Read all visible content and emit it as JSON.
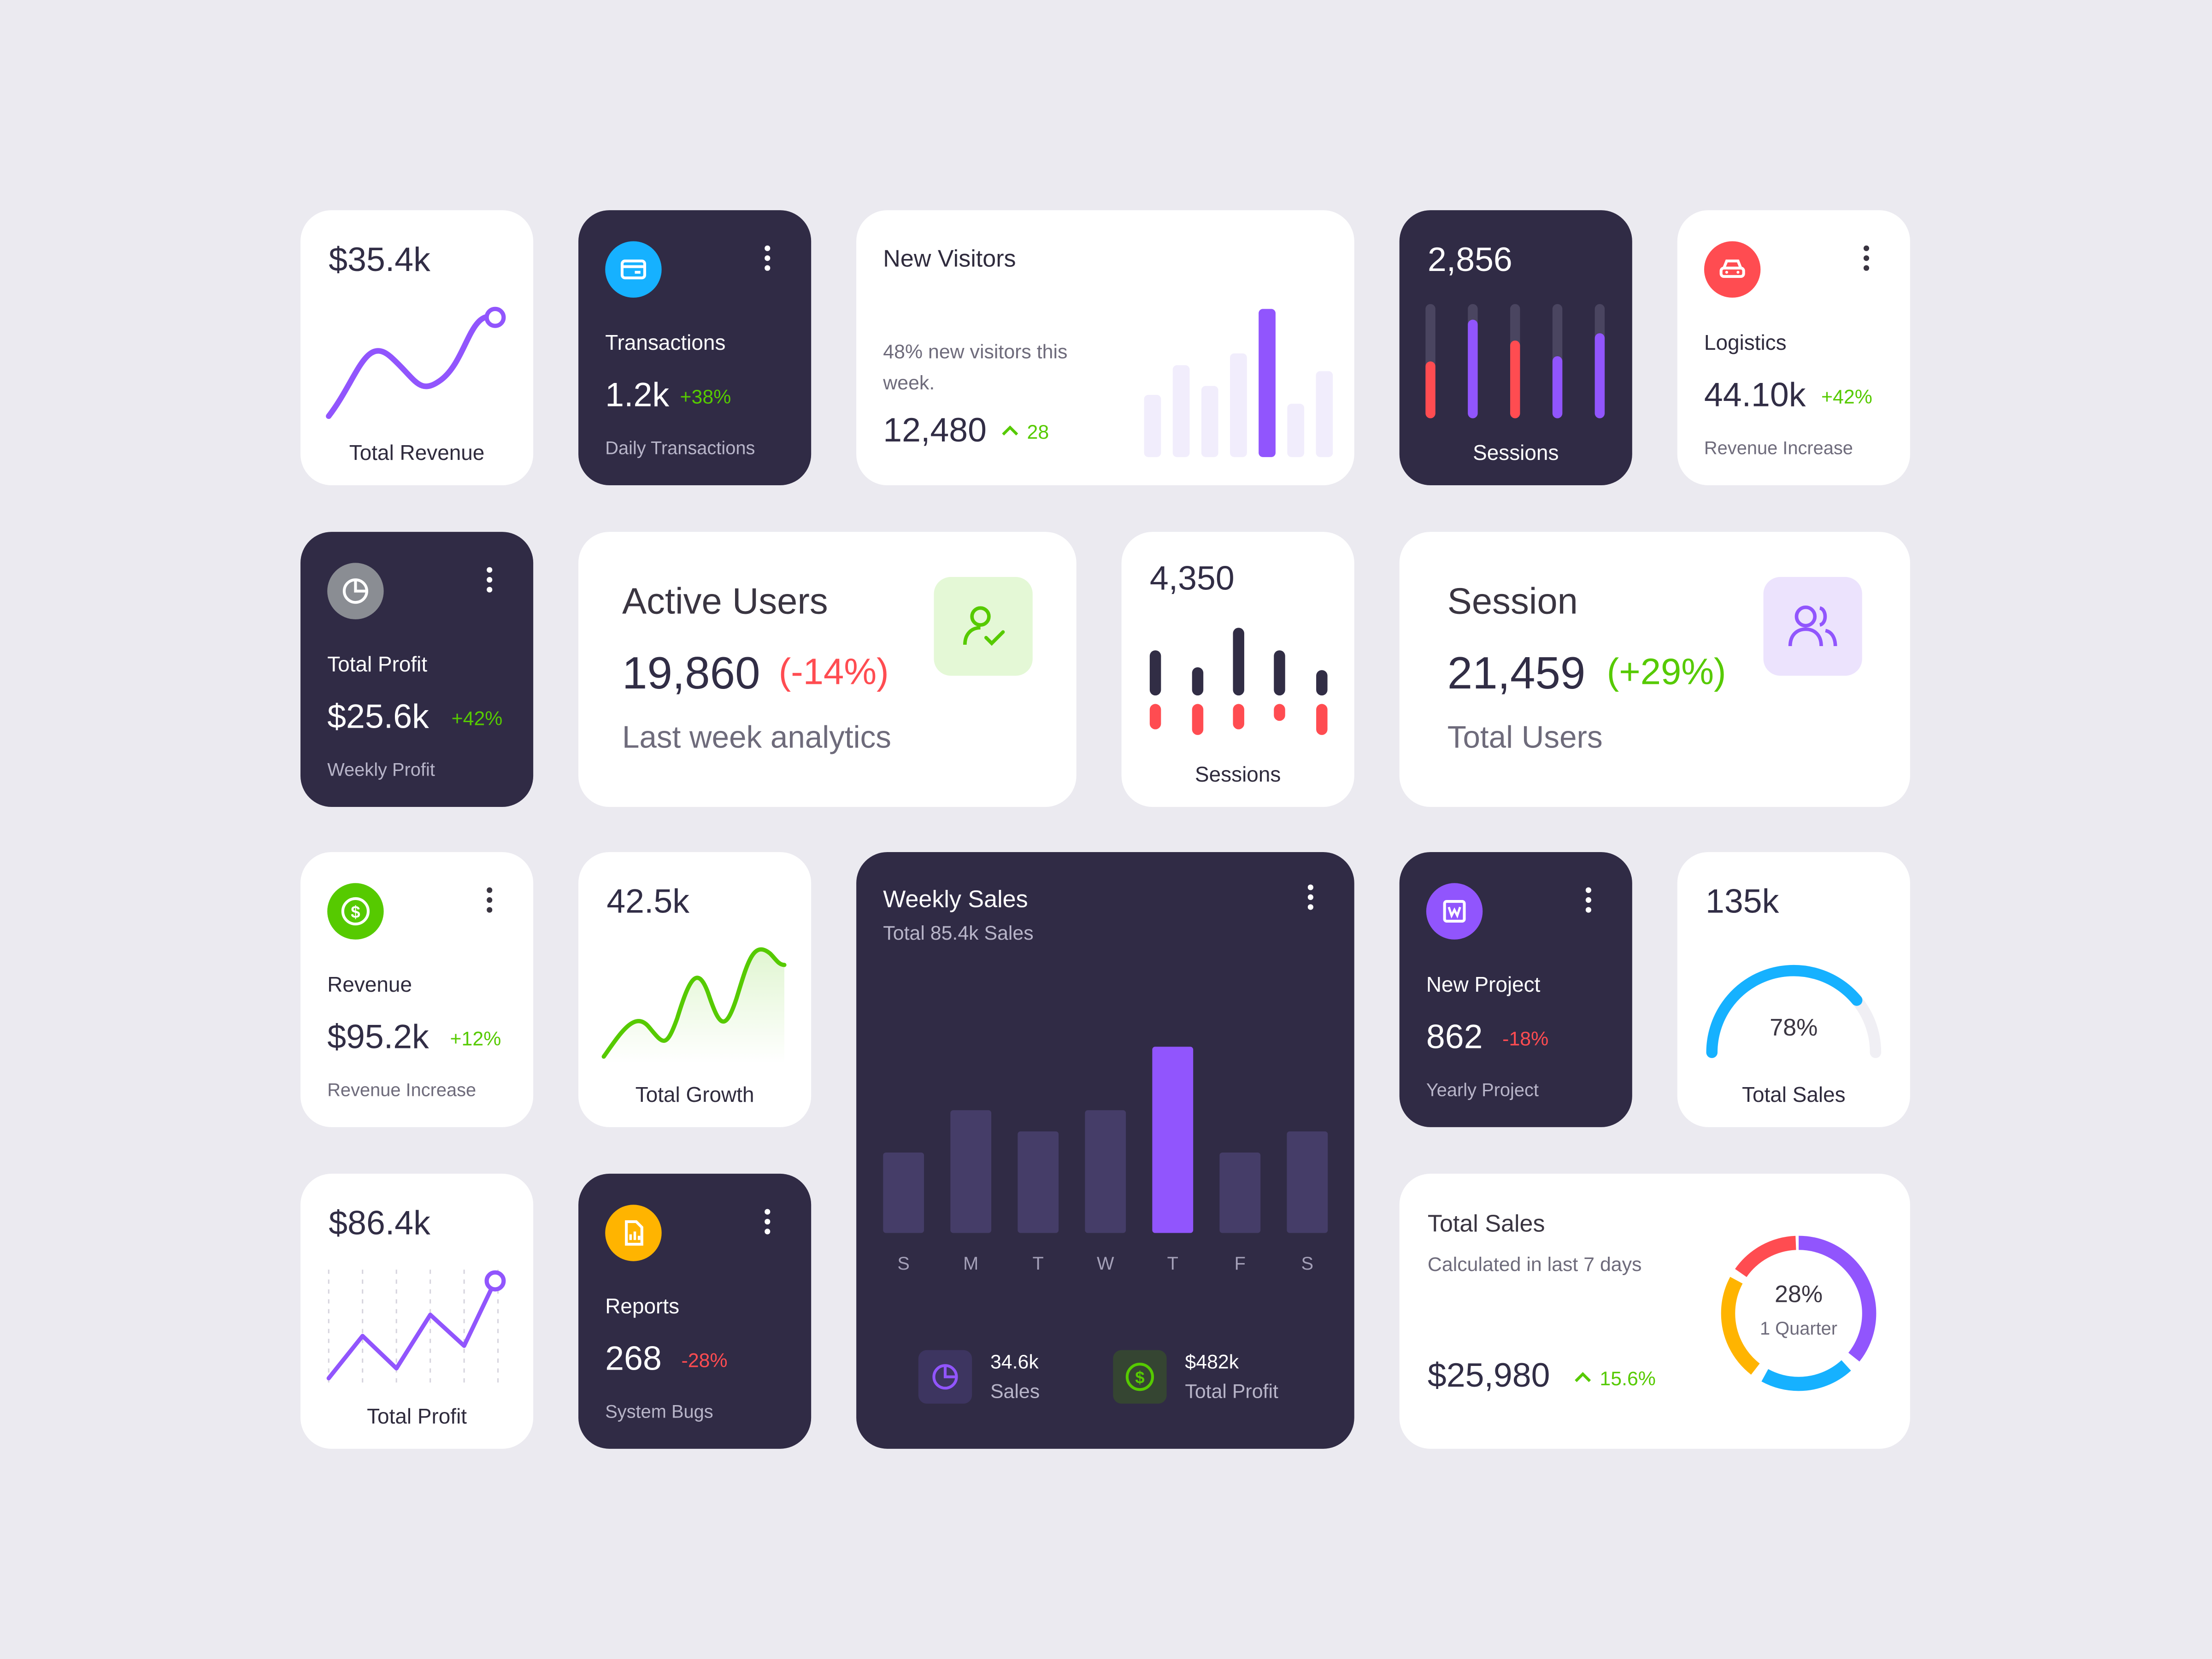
{
  "total_revenue": {
    "value": "$35.4k",
    "label": "Total Revenue"
  },
  "transactions": {
    "title": "Transactions",
    "value": "1.2k",
    "change": "+38%",
    "subtitle": "Daily Transactions",
    "icon": "credit-card-icon",
    "accent": "#16b1ff"
  },
  "new_visitors": {
    "title": "New Visitors",
    "description": "48% new visitors this week.",
    "value": "12,480",
    "change": "28",
    "bars": [
      0.42,
      0.62,
      0.48,
      0.7,
      1.0,
      0.36,
      0.58
    ],
    "highlight_index": 4
  },
  "sessions_dark": {
    "value": "2,856",
    "label": "Sessions",
    "bar_levels": [
      0.45,
      0.85,
      0.65,
      0.5,
      0.72
    ]
  },
  "logistics": {
    "title": "Logistics",
    "value": "44.10k",
    "change": "+42%",
    "subtitle": "Revenue Increase",
    "icon": "car-icon",
    "accent": "#ff4c51"
  },
  "total_profit_dark": {
    "title": "Total Profit",
    "value": "$25.6k",
    "change": "+42%",
    "subtitle": "Weekly Profit",
    "icon": "pie-chart-icon",
    "accent": "#8a8d93"
  },
  "active_users": {
    "title": "Active Users",
    "value": "19,860",
    "change": "(-14%)",
    "subtitle": "Last week analytics",
    "icon": "user-check-icon",
    "accent": "#56ca00"
  },
  "sessions_light": {
    "value": "4,350",
    "label": "Sessions"
  },
  "session": {
    "title": "Session",
    "value": "21,459",
    "change": "(+29%)",
    "subtitle": "Total Users",
    "icon": "users-icon",
    "accent": "#9155fd"
  },
  "revenue": {
    "title": "Revenue",
    "value": "$95.2k",
    "change": "+12%",
    "subtitle": "Revenue Increase",
    "icon": "dollar-icon",
    "accent": "#56ca00"
  },
  "total_growth": {
    "value": "42.5k",
    "label": "Total Growth"
  },
  "weekly_sales": {
    "title": "Weekly Sales",
    "subtitle": "Total 85.4k Sales",
    "sales_value": "34.6k",
    "sales_label": "Sales",
    "profit_value": "$482k",
    "profit_label": "Total Profit"
  },
  "new_project": {
    "title": "New Project",
    "value": "862",
    "change": "-18%",
    "subtitle": "Yearly Project",
    "icon": "document-icon",
    "accent": "#9155fd"
  },
  "total_sales_gauge": {
    "value": "135k",
    "percent": "78%",
    "label": "Total Sales",
    "fraction": 0.78
  },
  "total_profit_line": {
    "value": "$86.4k",
    "label": "Total Profit"
  },
  "reports": {
    "title": "Reports",
    "value": "268",
    "change": "-28%",
    "subtitle": "System Bugs",
    "icon": "report-icon",
    "accent": "#ffb400"
  },
  "total_sales_donut": {
    "title": "Total Sales",
    "subtitle": "Calculated in last 7 days",
    "value": "$25,980",
    "change": "15.6%",
    "percent": "28%",
    "period": "1 Quarter"
  },
  "chart_data": {
    "type": "bar",
    "categories": [
      "S",
      "M",
      "T",
      "W",
      "T",
      "F",
      "S"
    ],
    "values": [
      38,
      58,
      48,
      58,
      88,
      38,
      48
    ],
    "ylim": [
      0,
      100
    ]
  }
}
